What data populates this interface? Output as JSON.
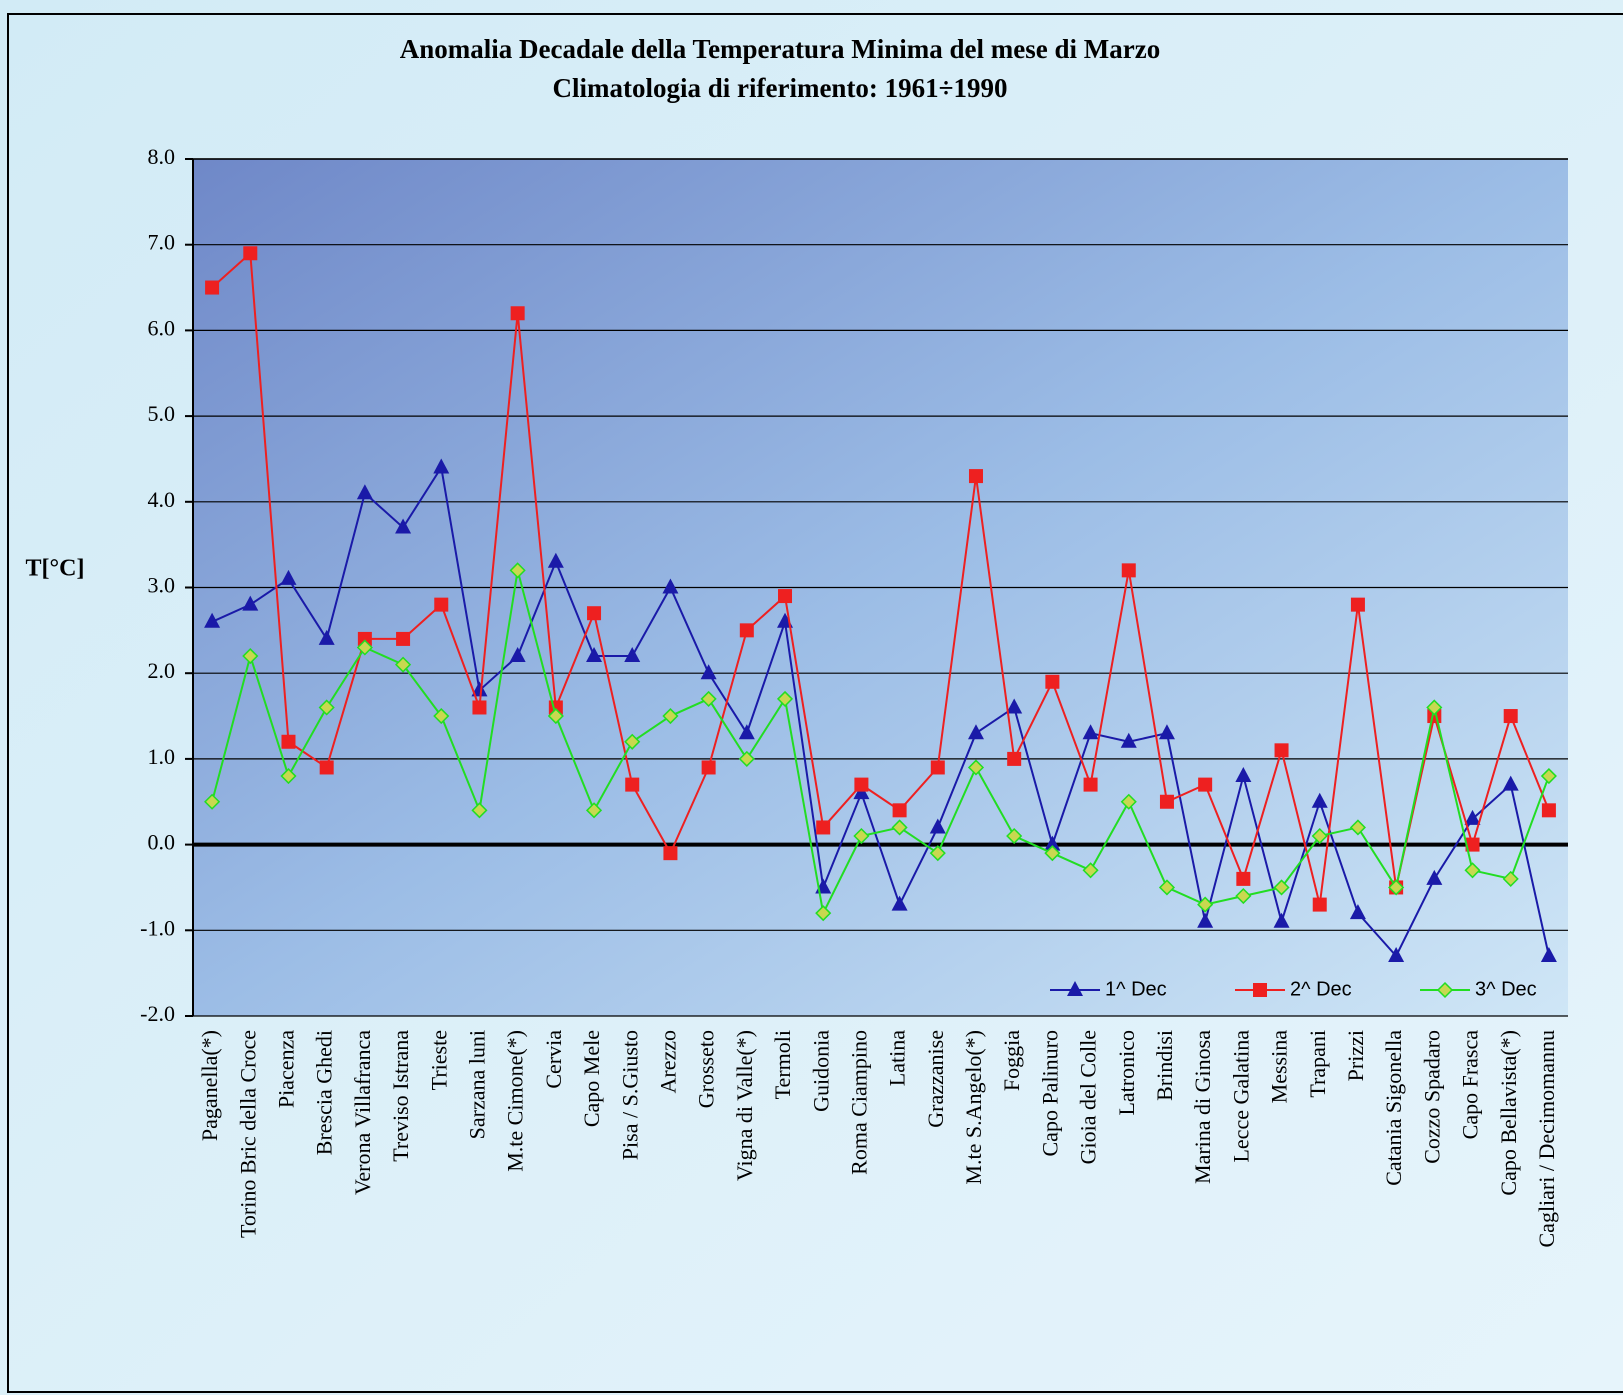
{
  "chart_data": {
    "type": "line",
    "title": "Anomalia Decadale della Temperatura Minima del mese di Marzo",
    "subtitle": "Climatologia di riferimento: 1961÷1990",
    "y_label": "T[°C]",
    "categories": [
      "Paganella(*)",
      "Torino Bric della Croce",
      "Piacenza",
      "Brescia Ghedi",
      "Verona Villafranca",
      "Treviso Istrana",
      "Trieste",
      "Sarzana luni",
      "M.te Cimone(*)",
      "Cervia",
      "Capo Mele",
      "Pisa / S.Giusto",
      "Arezzo",
      "Grosseto",
      "Vigna di Valle(*)",
      "Termoli",
      "Guidonia",
      "Roma Ciampino",
      "Latina",
      "Grazzanise",
      "M.te S.Angelo(*)",
      "Foggia",
      "Capo Palinuro",
      "Gioia del Colle",
      "Latronico",
      "Brindisi",
      "Marina di Ginosa",
      "Lecce Galatina",
      "Messina",
      "Trapani",
      "Prizzi",
      "Catania Sigonella",
      "Cozzo Spadaro",
      "Capo Frasca",
      "Capo Bellavista(*)",
      "Cagliari / Decimomannu"
    ],
    "series": [
      {
        "name": "1^ Dec",
        "color": "#1a1aa8",
        "marker": "triangle",
        "values": [
          2.6,
          2.8,
          3.1,
          2.4,
          4.1,
          3.7,
          4.4,
          1.8,
          2.2,
          3.3,
          2.2,
          2.2,
          3.0,
          2.0,
          1.3,
          2.6,
          -0.5,
          0.6,
          -0.7,
          0.2,
          1.3,
          1.6,
          0.0,
          1.3,
          1.2,
          1.3,
          -0.9,
          0.8,
          -0.9,
          0.5,
          -0.8,
          -1.3,
          -0.4,
          0.3,
          0.7,
          -1.3
        ]
      },
      {
        "name": "2^ Dec",
        "color": "#ee2020",
        "marker": "square",
        "values": [
          6.5,
          6.9,
          1.2,
          0.9,
          2.4,
          2.4,
          2.8,
          1.6,
          6.2,
          1.6,
          2.7,
          0.7,
          -0.1,
          0.9,
          2.5,
          2.9,
          0.2,
          0.7,
          0.4,
          0.9,
          4.3,
          1.0,
          1.9,
          0.7,
          3.2,
          0.5,
          0.7,
          -0.4,
          1.1,
          -0.7,
          2.8,
          -0.5,
          1.5,
          0.0,
          1.5,
          0.4
        ]
      },
      {
        "name": "3^ Dec",
        "color": "#22dd22",
        "marker": "diamond",
        "values": [
          0.5,
          2.2,
          0.8,
          1.6,
          2.3,
          2.1,
          1.5,
          0.4,
          3.2,
          1.5,
          0.4,
          1.2,
          1.5,
          1.7,
          1.0,
          1.7,
          -0.8,
          0.1,
          0.2,
          -0.1,
          0.9,
          0.1,
          -0.1,
          -0.3,
          0.5,
          -0.5,
          -0.7,
          -0.6,
          -0.5,
          0.1,
          0.2,
          -0.5,
          1.6,
          -0.3,
          -0.4,
          0.8
        ]
      }
    ],
    "ylim": [
      -2.0,
      8.0
    ],
    "yticks": [
      {
        "value": -2,
        "label": "-2.0"
      },
      {
        "value": -1,
        "label": "-1.0"
      },
      {
        "value": 0,
        "label": "0.0"
      },
      {
        "value": 1,
        "label": "1.0"
      },
      {
        "value": 2,
        "label": "2.0"
      },
      {
        "value": 3,
        "label": "3.0"
      },
      {
        "value": 4,
        "label": "4.0"
      },
      {
        "value": 5,
        "label": "5.0"
      },
      {
        "value": 6,
        "label": "6.0"
      },
      {
        "value": 7,
        "label": "7.0"
      },
      {
        "value": 8,
        "label": "8.0"
      }
    ],
    "grid": true,
    "legend": "lower right"
  }
}
